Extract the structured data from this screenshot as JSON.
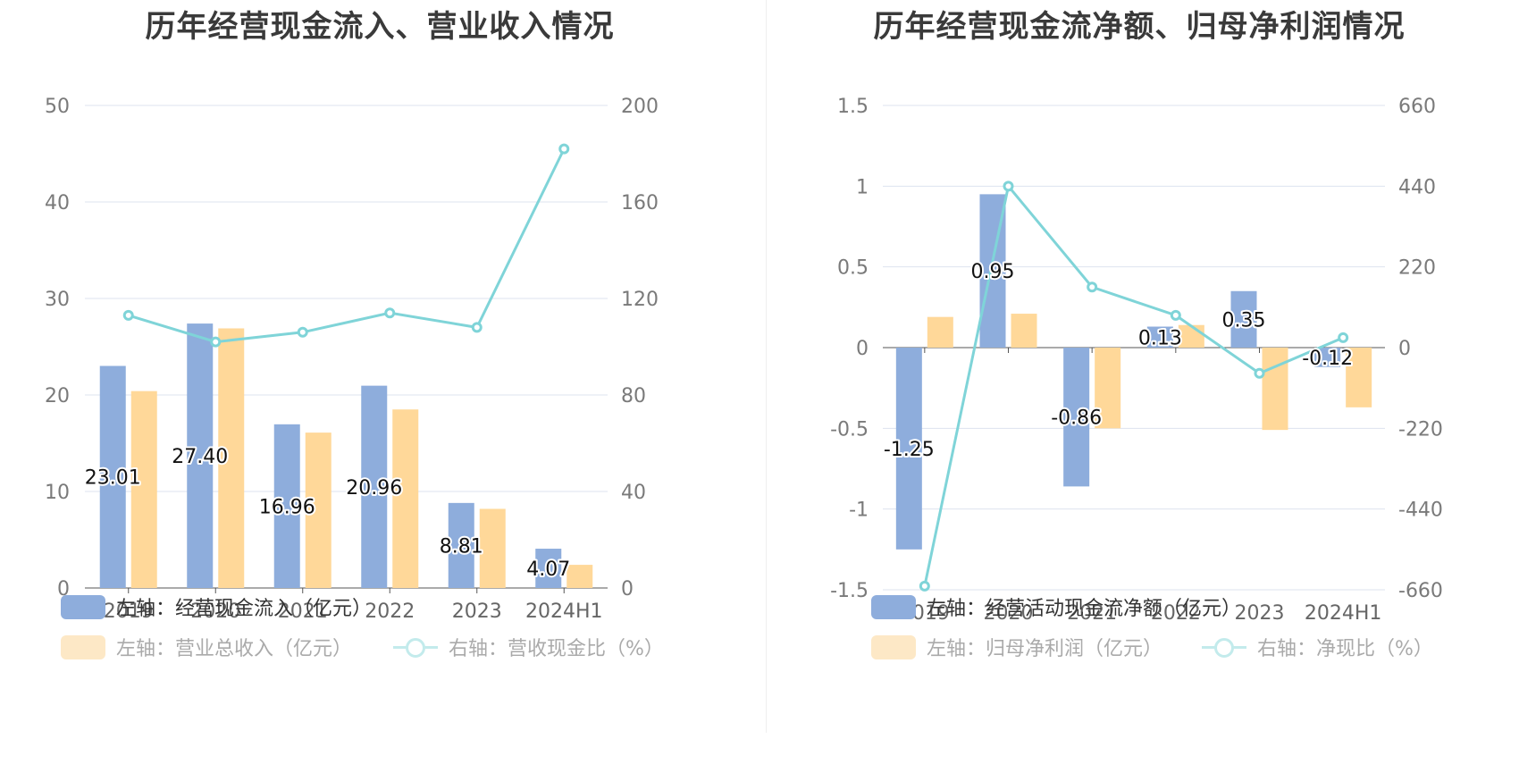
{
  "chart_data": [
    {
      "type": "bar",
      "title": "历年经营现金流入、营业收入情况",
      "categories": [
        "2019",
        "2020",
        "2021",
        "2022",
        "2023",
        "2024H1"
      ],
      "left_axis": {
        "ticks": [
          "0",
          "10",
          "20",
          "30",
          "40",
          "50"
        ],
        "ylim": [
          0,
          50
        ]
      },
      "right_axis": {
        "ticks": [
          "0",
          "40",
          "80",
          "120",
          "160",
          "200"
        ],
        "ylim": [
          0,
          200
        ]
      },
      "series": [
        {
          "name": "左轴：经营现金流入（亿元）",
          "type": "bar",
          "axis": "left",
          "color": "#8eaddc",
          "values": [
            23.01,
            27.4,
            16.96,
            20.96,
            8.81,
            4.07
          ],
          "labels": [
            "23.01",
            "27.40",
            "16.96",
            "20.96",
            "8.81",
            "4.07"
          ]
        },
        {
          "name": "左轴：营业总收入（亿元）",
          "type": "bar",
          "axis": "left",
          "color": "#ffd899",
          "values": [
            20.4,
            26.9,
            16.1,
            18.5,
            8.2,
            2.4
          ]
        },
        {
          "name": "右轴：营收现金比（%）",
          "type": "line",
          "axis": "right",
          "color": "#7fd4d8",
          "values": [
            113,
            102,
            106,
            114,
            108,
            182
          ]
        }
      ],
      "legend_placement": "bottom",
      "grid": true
    },
    {
      "type": "bar",
      "title": "历年经营现金流净额、归母净利润情况",
      "categories": [
        "2019",
        "2020",
        "2021",
        "2022",
        "2023",
        "2024H1"
      ],
      "left_axis": {
        "ticks": [
          "-1.5",
          "-1",
          "-0.5",
          "0",
          "0.5",
          "1",
          "1.5"
        ],
        "ylim": [
          -1.5,
          1.5
        ]
      },
      "right_axis": {
        "ticks": [
          "-660",
          "-440",
          "-220",
          "0",
          "220",
          "440",
          "660"
        ],
        "ylim": [
          -660,
          660
        ]
      },
      "series": [
        {
          "name": "左轴：经营活动现金流净额（亿元）",
          "type": "bar",
          "axis": "left",
          "color": "#8eaddc",
          "values": [
            -1.25,
            0.95,
            -0.86,
            0.13,
            0.35,
            -0.12
          ],
          "labels": [
            "-1.25",
            "0.95",
            "-0.86",
            "0.13",
            "0.35",
            "-0.12"
          ]
        },
        {
          "name": "左轴：归母净利润（亿元）",
          "type": "bar",
          "axis": "left",
          "color": "#ffd899",
          "values": [
            0.19,
            0.21,
            -0.5,
            0.14,
            -0.51,
            -0.37
          ]
        },
        {
          "name": "右轴：净现比（%）",
          "type": "line",
          "axis": "right",
          "color": "#7fd4d8",
          "values": [
            -650,
            440,
            165,
            88,
            -70,
            27
          ]
        }
      ],
      "legend_placement": "bottom",
      "grid": true
    }
  ]
}
